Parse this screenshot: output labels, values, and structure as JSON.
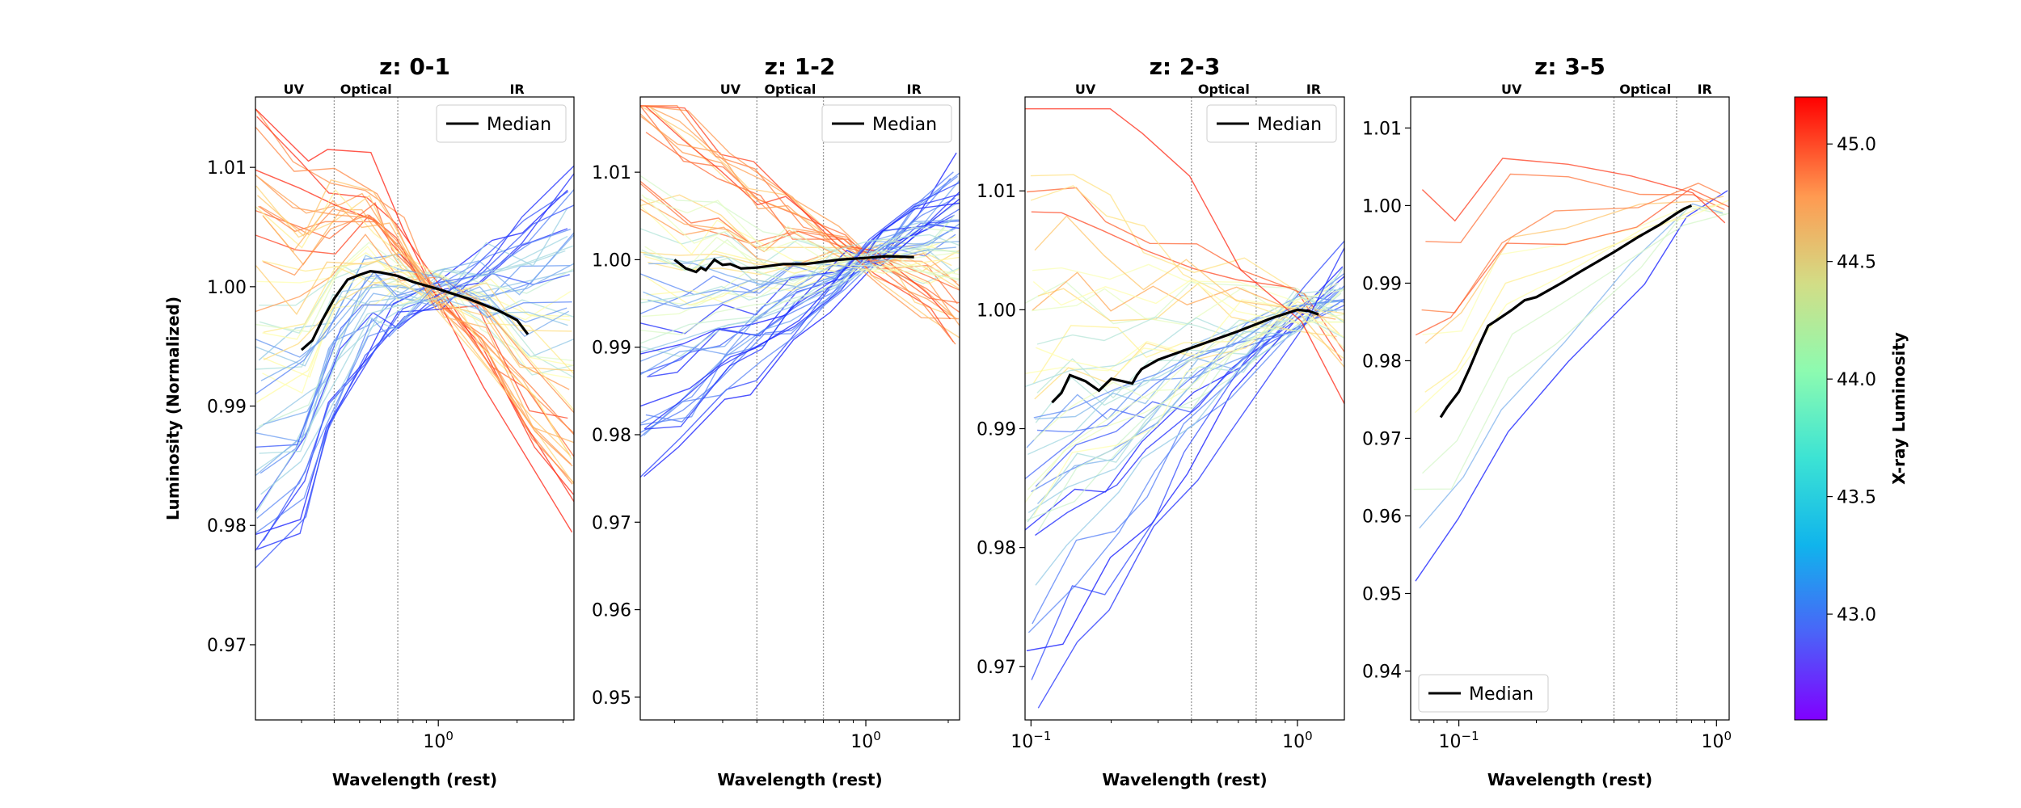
{
  "chart_data": [
    {
      "type": "line",
      "title": "z: 0-1",
      "xlabel": "Wavelength (rest)",
      "ylabel": "Luminosity (Normalized)",
      "x_scale": "log",
      "xlim": [
        0.2,
        3.3
      ],
      "ylim": [
        0.9637,
        1.0159
      ],
      "xtick_labels": [
        "10^0"
      ],
      "ytick_labels": [
        "0.97",
        "0.98",
        "0.99",
        "1.00",
        "1.01"
      ],
      "band_labels": [
        "UV",
        "Optical",
        "IR"
      ],
      "band_boundaries": [
        0.4,
        0.7
      ],
      "legend": {
        "label": "Median",
        "position": "upper right"
      },
      "series": [
        {
          "name": "Median",
          "x": [
            0.3,
            0.33,
            0.36,
            0.4,
            0.45,
            0.5,
            0.55,
            0.6,
            0.7,
            0.8,
            1.0,
            1.3,
            1.7,
            2.0,
            2.2
          ],
          "y": [
            0.9947,
            0.9955,
            0.9972,
            0.999,
            1.0006,
            1.001,
            1.0013,
            1.0012,
            1.0009,
            1.0004,
            0.9998,
            0.999,
            0.998,
            0.9972,
            0.996
          ]
        }
      ]
    },
    {
      "type": "line",
      "title": "z: 1-2",
      "xlabel": "Wavelength (rest)",
      "ylabel": "",
      "x_scale": "log",
      "xlim": [
        0.15,
        2.2
      ],
      "ylim": [
        0.9474,
        1.0186
      ],
      "xtick_labels": [
        "10^0"
      ],
      "ytick_labels": [
        "0.95",
        "0.96",
        "0.97",
        "0.98",
        "0.99",
        "1.00",
        "1.01"
      ],
      "band_labels": [
        "UV",
        "Optical",
        "IR"
      ],
      "band_boundaries": [
        0.4,
        0.7
      ],
      "legend": {
        "label": "Median",
        "position": "upper right"
      },
      "series": [
        {
          "name": "Median",
          "x": [
            0.2,
            0.22,
            0.24,
            0.25,
            0.26,
            0.28,
            0.3,
            0.32,
            0.35,
            0.4,
            0.5,
            0.6,
            0.8,
            1.0,
            1.2,
            1.5
          ],
          "y": [
            1.0,
            0.999,
            0.9986,
            0.9991,
            0.9988,
            1.0,
            0.9994,
            0.9995,
            0.999,
            0.9991,
            0.9995,
            0.9995,
            1.0,
            1.0002,
            1.0004,
            1.0003
          ]
        }
      ]
    },
    {
      "type": "line",
      "title": "z: 2-3",
      "xlabel": "Wavelength (rest)",
      "ylabel": "",
      "x_scale": "log",
      "xlim": [
        0.095,
        1.5
      ],
      "ylim": [
        0.9655,
        1.0179
      ],
      "xtick_labels": [
        "10^-1",
        "10^0"
      ],
      "ytick_labels": [
        "0.97",
        "0.98",
        "0.99",
        "1.00",
        "1.01"
      ],
      "band_labels": [
        "UV",
        "Optical",
        "IR"
      ],
      "band_boundaries": [
        0.4,
        0.7
      ],
      "legend": {
        "label": "Median",
        "position": "upper right"
      },
      "series": [
        {
          "name": "Median",
          "x": [
            0.12,
            0.13,
            0.14,
            0.16,
            0.18,
            0.2,
            0.22,
            0.24,
            0.25,
            0.26,
            0.3,
            0.4,
            0.6,
            0.8,
            1.0,
            1.1,
            1.2
          ],
          "y": [
            0.9922,
            0.993,
            0.9945,
            0.994,
            0.9932,
            0.9942,
            0.994,
            0.9938,
            0.9945,
            0.995,
            0.9958,
            0.9968,
            0.9982,
            0.9993,
            1.0,
            0.9999,
            0.9996
          ]
        }
      ]
    },
    {
      "type": "line",
      "title": "z: 3-5",
      "xlabel": "Wavelength (rest)",
      "ylabel": "",
      "x_scale": "log",
      "xlim": [
        0.065,
        1.12
      ],
      "ylim": [
        0.9337,
        1.014
      ],
      "xtick_labels": [
        "10^-1",
        "10^0"
      ],
      "ytick_labels": [
        "0.94",
        "0.95",
        "0.96",
        "0.97",
        "0.98",
        "0.99",
        "1.00",
        "1.01"
      ],
      "band_labels": [
        "UV",
        "Optical",
        "IR"
      ],
      "band_boundaries": [
        0.4,
        0.7
      ],
      "legend": {
        "label": "Median",
        "position": "lower left"
      },
      "series": [
        {
          "name": "Median",
          "x": [
            0.085,
            0.09,
            0.1,
            0.11,
            0.12,
            0.13,
            0.14,
            0.16,
            0.18,
            0.2,
            0.25,
            0.3,
            0.4,
            0.5,
            0.6,
            0.7,
            0.75,
            0.8
          ],
          "y": [
            0.9727,
            0.974,
            0.976,
            0.979,
            0.982,
            0.9845,
            0.9852,
            0.9865,
            0.9878,
            0.9882,
            0.99,
            0.9916,
            0.994,
            0.996,
            0.9975,
            0.999,
            0.9996,
            1.0
          ]
        }
      ]
    }
  ],
  "colorbar": {
    "label": "X-ray Luminosity",
    "range": [
      42.55,
      45.2
    ],
    "ticks": [
      "43.0",
      "43.5",
      "44.0",
      "44.5",
      "45.0"
    ],
    "colormap": "rainbow"
  },
  "colors": {
    "median": "#000000",
    "band_line": "#999999"
  }
}
